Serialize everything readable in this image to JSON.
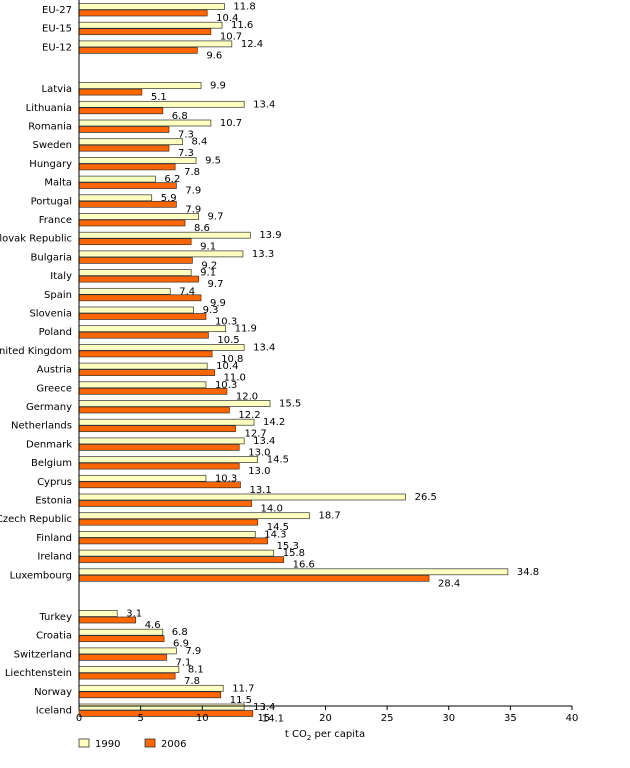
{
  "chart_data": {
    "type": "bar",
    "orientation": "horizontal",
    "xlabel_main": "t CO",
    "xlabel_sub": "2",
    "xlabel_rest": " per capita",
    "xlim": [
      0,
      40
    ],
    "xticks": [
      0,
      5,
      10,
      15,
      20,
      25,
      30,
      35,
      40
    ],
    "grid": false,
    "legend_position": "bottom-left",
    "colors": {
      "1990": "#FFFFC0",
      "2006": "#FF6600",
      "edge": "#333333"
    },
    "series": [
      {
        "name": "1990"
      },
      {
        "name": "2006"
      }
    ],
    "groups": [
      {
        "rows": [
          {
            "category": "EU-27",
            "v1990": 11.8,
            "v2006": 10.4,
            "l1990": "11.8",
            "l2006": "10.4"
          },
          {
            "category": "EU-15",
            "v1990": 11.6,
            "v2006": 10.7,
            "l1990": "11.6",
            "l2006": "10.7"
          },
          {
            "category": "EU-12",
            "v1990": 12.4,
            "v2006": 9.6,
            "l1990": "12.4",
            "l2006": "9.6"
          }
        ]
      },
      {
        "rows": [
          {
            "category": "Latvia",
            "v1990": 9.9,
            "v2006": 5.1,
            "l1990": "9.9",
            "l2006": "5.1"
          },
          {
            "category": "Lithuania",
            "v1990": 13.4,
            "v2006": 6.8,
            "l1990": "13.4",
            "l2006": "6.8"
          },
          {
            "category": "Romania",
            "v1990": 10.7,
            "v2006": 7.3,
            "l1990": "10.7",
            "l2006": "7.3"
          },
          {
            "category": "Sweden",
            "v1990": 8.4,
            "v2006": 7.3,
            "l1990": "8.4",
            "l2006": "7.3"
          },
          {
            "category": "Hungary",
            "v1990": 9.5,
            "v2006": 7.8,
            "l1990": "9.5",
            "l2006": "7.8"
          },
          {
            "category": "Malta",
            "v1990": 6.2,
            "v2006": 7.9,
            "l1990": "6.2",
            "l2006": "7.9"
          },
          {
            "category": "Portugal",
            "v1990": 5.9,
            "v2006": 7.9,
            "l1990": "5.9",
            "l2006": "7.9"
          },
          {
            "category": "France",
            "v1990": 9.7,
            "v2006": 8.6,
            "l1990": "9.7",
            "l2006": "8.6"
          },
          {
            "category": "Slovak Republic",
            "v1990": 13.9,
            "v2006": 9.1,
            "l1990": "13.9",
            "l2006": "9.1"
          },
          {
            "category": "Bulgaria",
            "v1990": 13.3,
            "v2006": 9.2,
            "l1990": "13.3",
            "l2006": "9.2"
          },
          {
            "category": "Italy",
            "v1990": 9.1,
            "v2006": 9.7,
            "l1990": "9.1",
            "l2006": "9.7"
          },
          {
            "category": "Spain",
            "v1990": 7.4,
            "v2006": 9.9,
            "l1990": "7.4",
            "l2006": "9.9"
          },
          {
            "category": "Slovenia",
            "v1990": 9.3,
            "v2006": 10.3,
            "l1990": "9.3",
            "l2006": "10.3"
          },
          {
            "category": "Poland",
            "v1990": 11.9,
            "v2006": 10.5,
            "l1990": "11.9",
            "l2006": "10.5"
          },
          {
            "category": "United Kingdom",
            "v1990": 13.4,
            "v2006": 10.8,
            "l1990": "13.4",
            "l2006": "10.8"
          },
          {
            "category": "Austria",
            "v1990": 10.4,
            "v2006": 11.0,
            "l1990": "10.4",
            "l2006": "11.0"
          },
          {
            "category": "Greece",
            "v1990": 10.3,
            "v2006": 12.0,
            "l1990": "10.3",
            "l2006": "12.0"
          },
          {
            "category": "Germany",
            "v1990": 15.5,
            "v2006": 12.2,
            "l1990": "15.5",
            "l2006": "12.2"
          },
          {
            "category": "Netherlands",
            "v1990": 14.2,
            "v2006": 12.7,
            "l1990": "14.2",
            "l2006": "12.7"
          },
          {
            "category": "Denmark",
            "v1990": 13.4,
            "v2006": 13.0,
            "l1990": "13.4",
            "l2006": "13.0"
          },
          {
            "category": "Belgium",
            "v1990": 14.5,
            "v2006": 13.0,
            "l1990": "14.5",
            "l2006": "13.0"
          },
          {
            "category": "Cyprus",
            "v1990": 10.3,
            "v2006": 13.1,
            "l1990": "10.3",
            "l2006": "13.1"
          },
          {
            "category": "Estonia",
            "v1990": 26.5,
            "v2006": 14.0,
            "l1990": "26.5",
            "l2006": "14.0"
          },
          {
            "category": "Czech Republic",
            "v1990": 18.7,
            "v2006": 14.5,
            "l1990": "18.7",
            "l2006": "14.5"
          },
          {
            "category": "Finland",
            "v1990": 14.3,
            "v2006": 15.3,
            "l1990": "14.3",
            "l2006": "15.3"
          },
          {
            "category": "Ireland",
            "v1990": 15.8,
            "v2006": 16.6,
            "l1990": "15.8",
            "l2006": "16.6"
          },
          {
            "category": "Luxembourg",
            "v1990": 34.8,
            "v2006": 28.4,
            "l1990": "34.8",
            "l2006": "28.4"
          }
        ]
      },
      {
        "rows": [
          {
            "category": "Turkey",
            "v1990": 3.1,
            "v2006": 4.6,
            "l1990": "3.1",
            "l2006": "4.6"
          },
          {
            "category": "Croatia",
            "v1990": 6.8,
            "v2006": 6.9,
            "l1990": "6.8",
            "l2006": "6.9"
          },
          {
            "category": "Switzerland",
            "v1990": 7.9,
            "v2006": 7.1,
            "l1990": "7.9",
            "l2006": "7.1"
          },
          {
            "category": "Liechtenstein",
            "v1990": 8.1,
            "v2006": 7.8,
            "l1990": "8.1",
            "l2006": "7.8"
          },
          {
            "category": "Norway",
            "v1990": 11.7,
            "v2006": 11.5,
            "l1990": "11.7",
            "l2006": "11.5"
          },
          {
            "category": "Iceland",
            "v1990": 13.4,
            "v2006": 14.1,
            "l1990": "13.4",
            "l2006": "14.1"
          }
        ]
      }
    ]
  }
}
